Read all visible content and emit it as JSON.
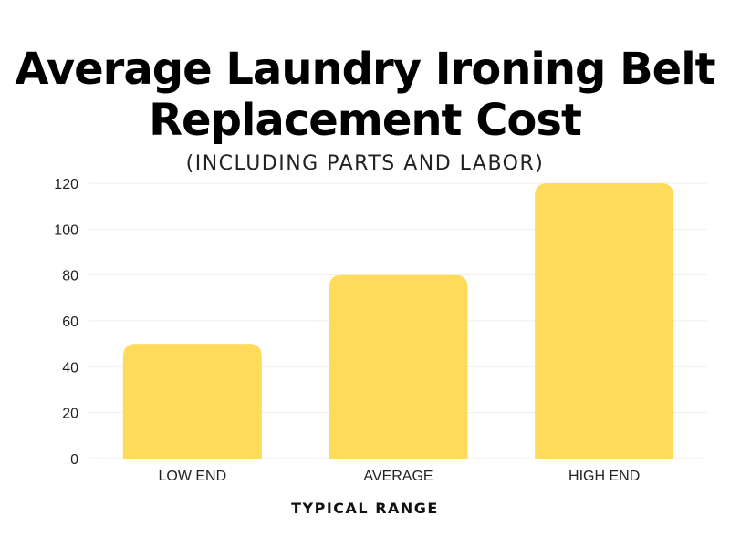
{
  "chart_data": {
    "type": "bar",
    "title_lines": [
      "Average Laundry Ironing Belt",
      "Replacement Cost"
    ],
    "subtitle": "(INCLUDING PARTS AND LABOR)",
    "categories": [
      "LOW END",
      "AVERAGE",
      "HIGH END"
    ],
    "values": [
      50,
      80,
      120
    ],
    "xlabel": "TYPICAL RANGE",
    "ylabel": "",
    "ylim": [
      0,
      120
    ],
    "yticks": [
      0,
      20,
      40,
      60,
      80,
      100,
      120
    ],
    "grid": true,
    "bar_color": "#FFDB5C",
    "grid_color": "#EEEEEE"
  }
}
